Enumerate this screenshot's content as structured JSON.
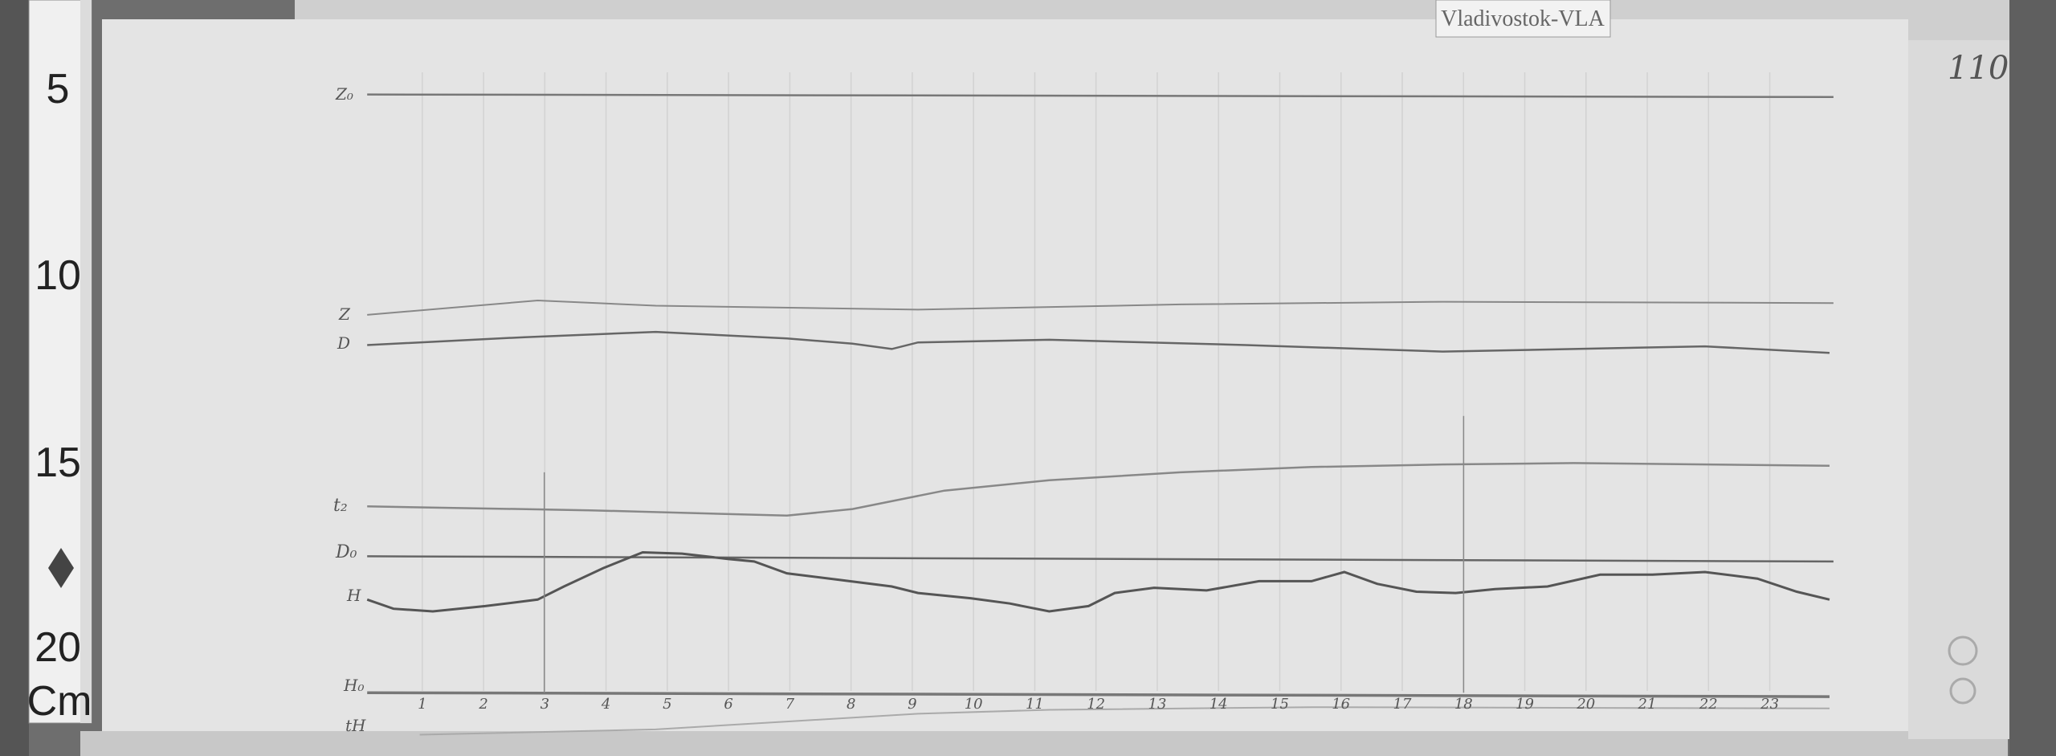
{
  "station_label": "Vladivostok-VLA",
  "sheet_number": "110",
  "ruler": {
    "marks": [
      "5",
      "10",
      "15",
      "20"
    ],
    "unit": "Cm"
  },
  "trace_labels": {
    "z0": "Z₀",
    "z": "Z",
    "d": "D",
    "t2": "t₂",
    "d0": "D₀",
    "h": "H",
    "h0": "H₀",
    "th": "tH"
  },
  "hour_ticks": [
    "1",
    "2",
    "3",
    "4",
    "5",
    "6",
    "7",
    "8",
    "9",
    "10",
    "11",
    "12",
    "13",
    "14",
    "15",
    "16",
    "17",
    "18",
    "19",
    "20",
    "21",
    "22",
    "23"
  ],
  "colors": {
    "paper": "#e4e4e4",
    "trace": "#666666",
    "background": "#6b6b6b"
  }
}
